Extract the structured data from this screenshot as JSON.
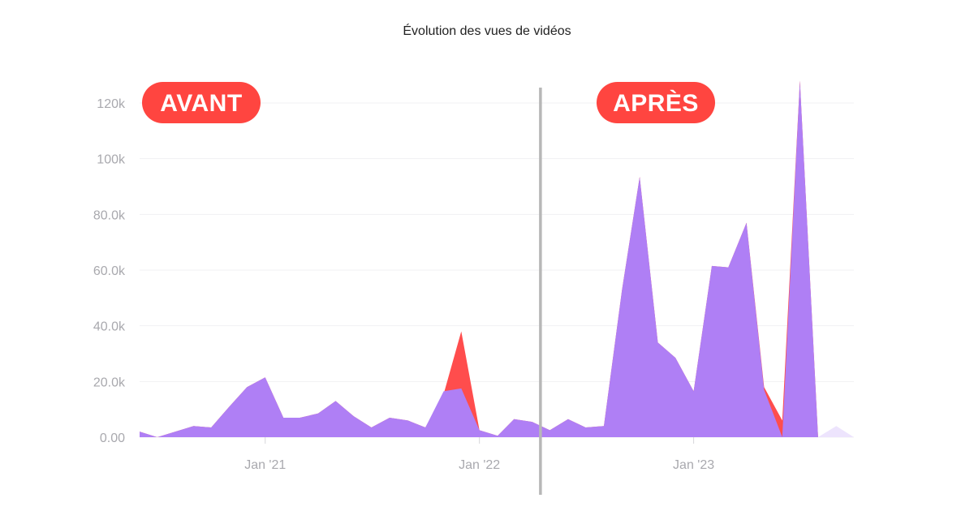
{
  "chart_data": {
    "type": "area",
    "title": "Évolution des vues de vidéos",
    "xlabel": "",
    "ylabel": "",
    "ylim": [
      0,
      125000
    ],
    "grid": true,
    "y_ticks": [
      {
        "value": 0,
        "label": "0.00"
      },
      {
        "value": 20000,
        "label": "20.0k"
      },
      {
        "value": 40000,
        "label": "40.0k"
      },
      {
        "value": 60000,
        "label": "60.0k"
      },
      {
        "value": 80000,
        "label": "80.0k"
      },
      {
        "value": 100000,
        "label": "100k"
      },
      {
        "value": 120000,
        "label": "120k"
      }
    ],
    "x_ticks": [
      {
        "date": "2021-01-01",
        "label": "Jan '21"
      },
      {
        "date": "2022-01-01",
        "label": "Jan '22"
      },
      {
        "date": "2023-01-01",
        "label": "Jan '23"
      }
    ],
    "x": [
      "2020-06-01",
      "2020-07-01",
      "2020-08-01",
      "2020-09-01",
      "2020-10-01",
      "2020-11-01",
      "2020-12-01",
      "2021-01-01",
      "2021-02-01",
      "2021-03-01",
      "2021-04-01",
      "2021-05-01",
      "2021-06-01",
      "2021-07-01",
      "2021-08-01",
      "2021-09-01",
      "2021-10-01",
      "2021-11-01",
      "2021-12-01",
      "2022-01-01",
      "2022-02-01",
      "2022-03-01",
      "2022-04-01",
      "2022-05-01",
      "2022-06-01",
      "2022-07-01",
      "2022-08-01",
      "2022-09-01",
      "2022-10-01",
      "2022-11-01",
      "2022-12-01",
      "2023-01-01",
      "2023-02-01",
      "2023-03-01",
      "2023-04-01",
      "2023-05-01",
      "2023-06-01",
      "2023-07-01",
      "2023-08-01",
      "2023-09-01",
      "2023-10-01"
    ],
    "series": [
      {
        "color": "#ff4d4d",
        "values": [
          2000,
          0,
          2000,
          4000,
          3500,
          11000,
          18000,
          21500,
          7000,
          7000,
          8500,
          13000,
          7500,
          3500,
          7000,
          6000,
          3500,
          15500,
          38000,
          2500,
          500,
          6500,
          5500,
          2500,
          6500,
          3500,
          4000,
          53000,
          93500,
          34000,
          28500,
          16500,
          61500,
          61000,
          77000,
          18000,
          6000,
          128000,
          0,
          0,
          0
        ]
      },
      {
        "color": "#af7ff5",
        "values": [
          2000,
          0,
          2000,
          4000,
          3500,
          11000,
          18000,
          21500,
          7000,
          7000,
          8500,
          13000,
          7500,
          3500,
          7000,
          6000,
          3500,
          16500,
          17500,
          2500,
          500,
          6500,
          5500,
          2500,
          6500,
          3500,
          4000,
          53000,
          93500,
          34000,
          28500,
          16500,
          61500,
          61000,
          77000,
          17000,
          0,
          128000,
          0,
          0,
          0
        ]
      },
      {
        "color": "#ede4fd",
        "values": [
          0,
          0,
          0,
          0,
          0,
          0,
          0,
          0,
          0,
          0,
          0,
          0,
          0,
          0,
          0,
          0,
          0,
          0,
          0,
          0,
          0,
          0,
          0,
          0,
          0,
          0,
          0,
          0,
          0,
          0,
          0,
          0,
          0,
          0,
          0,
          0,
          0,
          0,
          0,
          4000,
          0
        ]
      }
    ],
    "annotations": [
      {
        "label": "AVANT",
        "color": "#ff4540"
      },
      {
        "label": "APRÈS",
        "color": "#ff4540"
      }
    ],
    "divider_date": "2022-04-15"
  }
}
